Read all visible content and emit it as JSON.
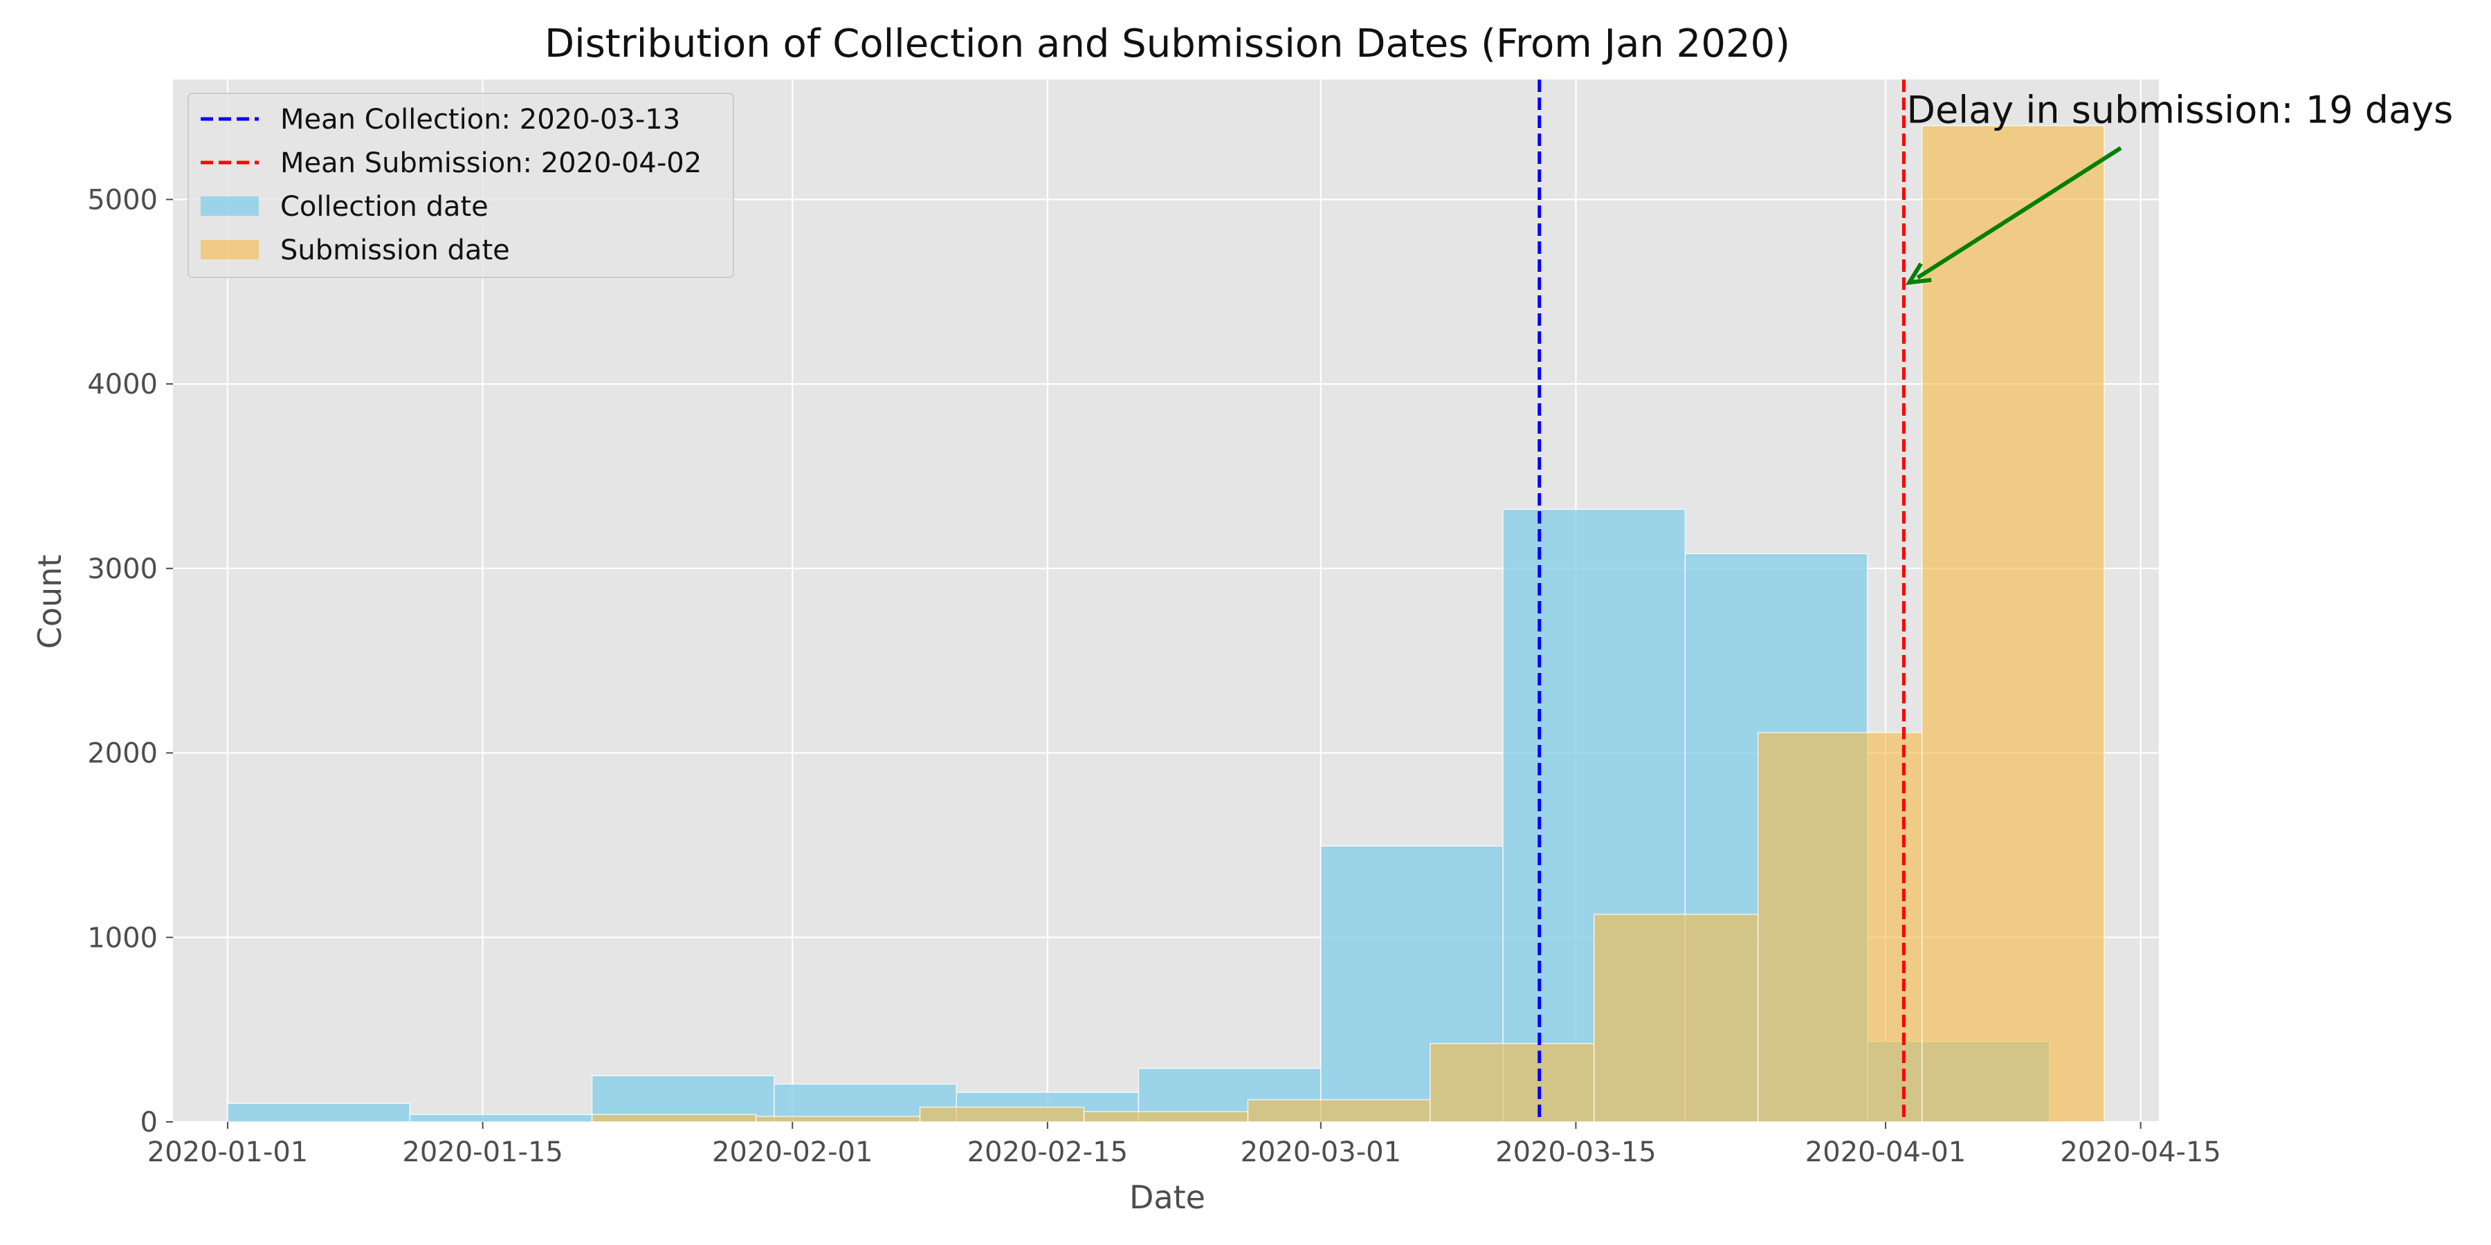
{
  "chart_data": {
    "type": "histogram",
    "title": "Distribution of Collection and Submission Dates (From Jan 2020)",
    "xlabel": "Date",
    "ylabel": "Count",
    "x_scale": "date",
    "xlim": [
      "2019-12-29",
      "2020-04-16"
    ],
    "ylim": [
      0,
      5650
    ],
    "x_ticks": [
      "2020-01-01",
      "2020-01-15",
      "2020-02-01",
      "2020-02-15",
      "2020-03-01",
      "2020-03-15",
      "2020-04-01",
      "2020-04-15"
    ],
    "y_ticks": [
      0,
      1000,
      2000,
      3000,
      4000,
      5000
    ],
    "grid": true,
    "legend_position": "upper-left",
    "series": [
      {
        "name": "Collection date",
        "color": "#87CEEB",
        "bins": [
          {
            "start": "2020-01-01",
            "end": "2020-01-11",
            "count": 100
          },
          {
            "start": "2020-01-11",
            "end": "2020-01-21",
            "count": 40
          },
          {
            "start": "2020-01-21",
            "end": "2020-01-31",
            "count": 250
          },
          {
            "start": "2020-01-31",
            "end": "2020-02-10",
            "count": 205
          },
          {
            "start": "2020-02-10",
            "end": "2020-02-20",
            "count": 160
          },
          {
            "start": "2020-02-20",
            "end": "2020-03-01",
            "count": 290
          },
          {
            "start": "2020-03-01",
            "end": "2020-03-11",
            "count": 1495
          },
          {
            "start": "2020-03-11",
            "end": "2020-03-21",
            "count": 3320
          },
          {
            "start": "2020-03-21",
            "end": "2020-03-31",
            "count": 3080
          },
          {
            "start": "2020-03-31",
            "end": "2020-04-10",
            "count": 435
          }
        ]
      },
      {
        "name": "Submission date",
        "color": "#F5BC4A",
        "bins": [
          {
            "start": "2020-01-21",
            "end": "2020-01-30",
            "count": 40
          },
          {
            "start": "2020-01-30",
            "end": "2020-02-08",
            "count": 30
          },
          {
            "start": "2020-02-08",
            "end": "2020-02-17",
            "count": 80
          },
          {
            "start": "2020-02-17",
            "end": "2020-02-26",
            "count": 55
          },
          {
            "start": "2020-02-26",
            "end": "2020-03-07",
            "count": 120
          },
          {
            "start": "2020-03-07",
            "end": "2020-03-16",
            "count": 425
          },
          {
            "start": "2020-03-16",
            "end": "2020-03-25",
            "count": 1125
          },
          {
            "start": "2020-03-25",
            "end": "2020-04-03",
            "count": 2110
          },
          {
            "start": "2020-04-03",
            "end": "2020-04-13",
            "count": 5400
          }
        ]
      }
    ],
    "reference_lines": [
      {
        "label": "Mean Collection: 2020-03-13",
        "date": "2020-03-13",
        "color": "#0000FF",
        "style": "dashed"
      },
      {
        "label": "Mean Submission: 2020-04-02",
        "date": "2020-04-02",
        "color": "#FF0000",
        "style": "dashed"
      }
    ],
    "annotation": {
      "text": "Delay in submission: 19 days",
      "arrow_color": "#008000",
      "arrow_target": {
        "date": "2020-04-02",
        "count": 4550
      },
      "text_anchor": {
        "date": "2020-04-02",
        "count": 5420
      }
    }
  }
}
